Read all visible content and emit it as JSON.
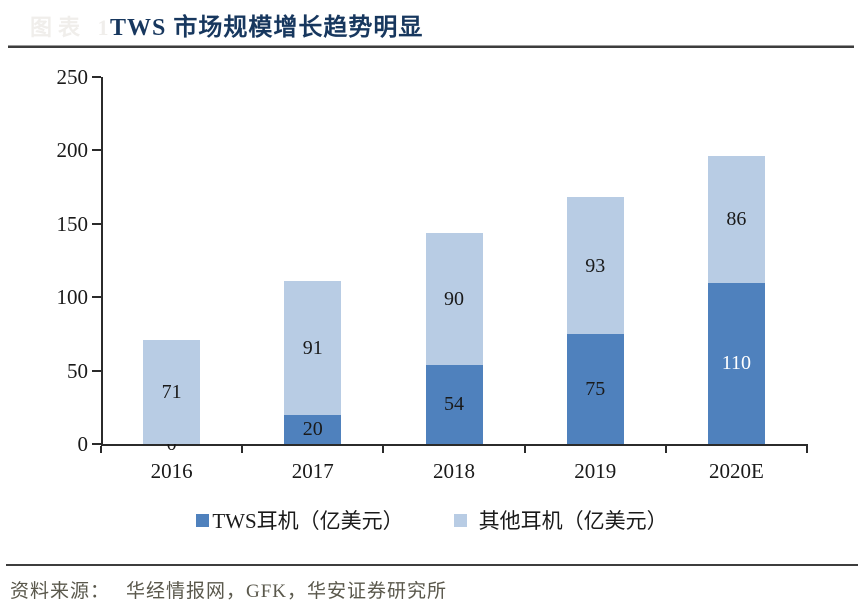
{
  "header": {
    "faint_label": "图表 1",
    "title": "TWS 市场规模增长趋势明显",
    "title_color": "#17375e"
  },
  "chart_data": {
    "type": "bar",
    "stacked": true,
    "title": "TWS 市场规模增长趋势明显",
    "categories": [
      "2016",
      "2017",
      "2018",
      "2019",
      "2020E"
    ],
    "series": [
      {
        "name": "TWS耳机（亿美元）",
        "color": "#4f81bd",
        "values": [
          0,
          20,
          54,
          75,
          110
        ],
        "label_colors": [
          "#1a1a1a",
          "#1a1a1a",
          "#1a1a1a",
          "#1a1a1a",
          "#ffffff"
        ]
      },
      {
        "name": "其他耳机（亿美元）",
        "color": "#b8cce4",
        "values": [
          71,
          91,
          90,
          93,
          86
        ],
        "label_colors": [
          "#1a1a1a",
          "#1a1a1a",
          "#1a1a1a",
          "#1a1a1a",
          "#1a1a1a"
        ]
      }
    ],
    "totals": [
      71,
      111,
      144,
      168,
      196
    ],
    "xlabel": "",
    "ylabel": "",
    "ylim": [
      0,
      250
    ],
    "yticks": [
      0,
      50,
      100,
      150,
      200,
      250
    ],
    "grid": false,
    "data_labels": true,
    "legend_position": "bottom"
  },
  "footer": {
    "source_label": "资料来源：",
    "source_text": "华经情报网，GFK，华安证券研究所",
    "text_color": "#5a584c"
  },
  "colors": {
    "axis": "#2b2b2b",
    "rule": "#3d3d3d"
  }
}
